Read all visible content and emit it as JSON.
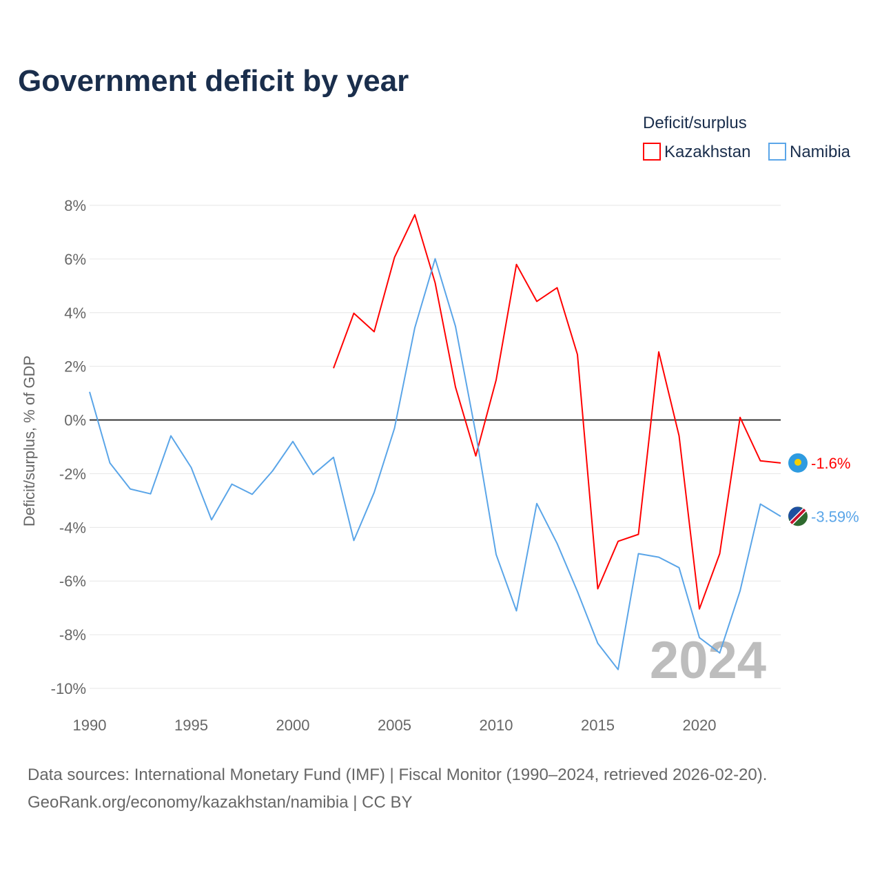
{
  "chart_data": {
    "type": "line",
    "title": "Government deficit by year",
    "ylabel": "Deficit/surplus, % of GDP",
    "xlabel": "",
    "xlim": [
      1990,
      2024
    ],
    "ylim": [
      -10,
      8
    ],
    "x_ticks": [
      1990,
      1995,
      2000,
      2005,
      2010,
      2015,
      2020
    ],
    "y_ticks": [
      8,
      6,
      4,
      2,
      0,
      -2,
      -4,
      -6,
      -8,
      -10
    ],
    "y_tick_labels": [
      "8%",
      "6%",
      "4%",
      "2%",
      "0%",
      "-2%",
      "-4%",
      "-6%",
      "-8%",
      "-10%"
    ],
    "grid": true,
    "legend": {
      "title": "Deficit/surplus",
      "placement": "top-right"
    },
    "year_watermark": "2024",
    "series": [
      {
        "name": "Kazakhstan",
        "color": "#ff0000",
        "end_label": "-1.6%",
        "x": [
          2002,
          2003,
          2004,
          2005,
          2006,
          2007,
          2008,
          2009,
          2010,
          2011,
          2012,
          2013,
          2014,
          2015,
          2016,
          2017,
          2018,
          2019,
          2020,
          2021,
          2022,
          2023,
          2024
        ],
        "values": [
          1.93,
          3.98,
          3.29,
          6.06,
          7.65,
          5.11,
          1.23,
          -1.34,
          1.49,
          5.8,
          4.42,
          4.93,
          2.44,
          -6.29,
          -4.52,
          -4.26,
          2.54,
          -0.59,
          -7.04,
          -4.98,
          0.1,
          -1.52,
          -1.6
        ]
      },
      {
        "name": "Namibia",
        "color": "#5aa5e8",
        "end_label": "-3.59%",
        "x": [
          1990,
          1991,
          1992,
          1993,
          1994,
          1995,
          1996,
          1997,
          1998,
          1999,
          2000,
          2001,
          2002,
          2003,
          2004,
          2005,
          2006,
          2007,
          2008,
          2009,
          2010,
          2011,
          2012,
          2013,
          2014,
          2015,
          2016,
          2017,
          2018,
          2019,
          2020,
          2021,
          2022,
          2023,
          2024
        ],
        "values": [
          1.05,
          -1.6,
          -2.57,
          -2.75,
          -0.59,
          -1.77,
          -3.72,
          -2.39,
          -2.77,
          -1.9,
          -0.8,
          -2.03,
          -1.39,
          -4.49,
          -2.7,
          -0.31,
          3.44,
          6.01,
          3.49,
          -0.5,
          -5.01,
          -7.11,
          -3.11,
          -4.6,
          -6.39,
          -8.32,
          -9.3,
          -4.98,
          -5.11,
          -5.5,
          -8.11,
          -8.68,
          -6.37,
          -3.13,
          -3.59
        ]
      }
    ]
  },
  "footer": {
    "source_line": "Data sources: International Monetary Fund (IMF) | Fiscal Monitor (1990–2024, retrieved 2026-02-20).",
    "credit_line": "GeoRank.org/economy/kazakhstan/namibia | CC BY"
  }
}
